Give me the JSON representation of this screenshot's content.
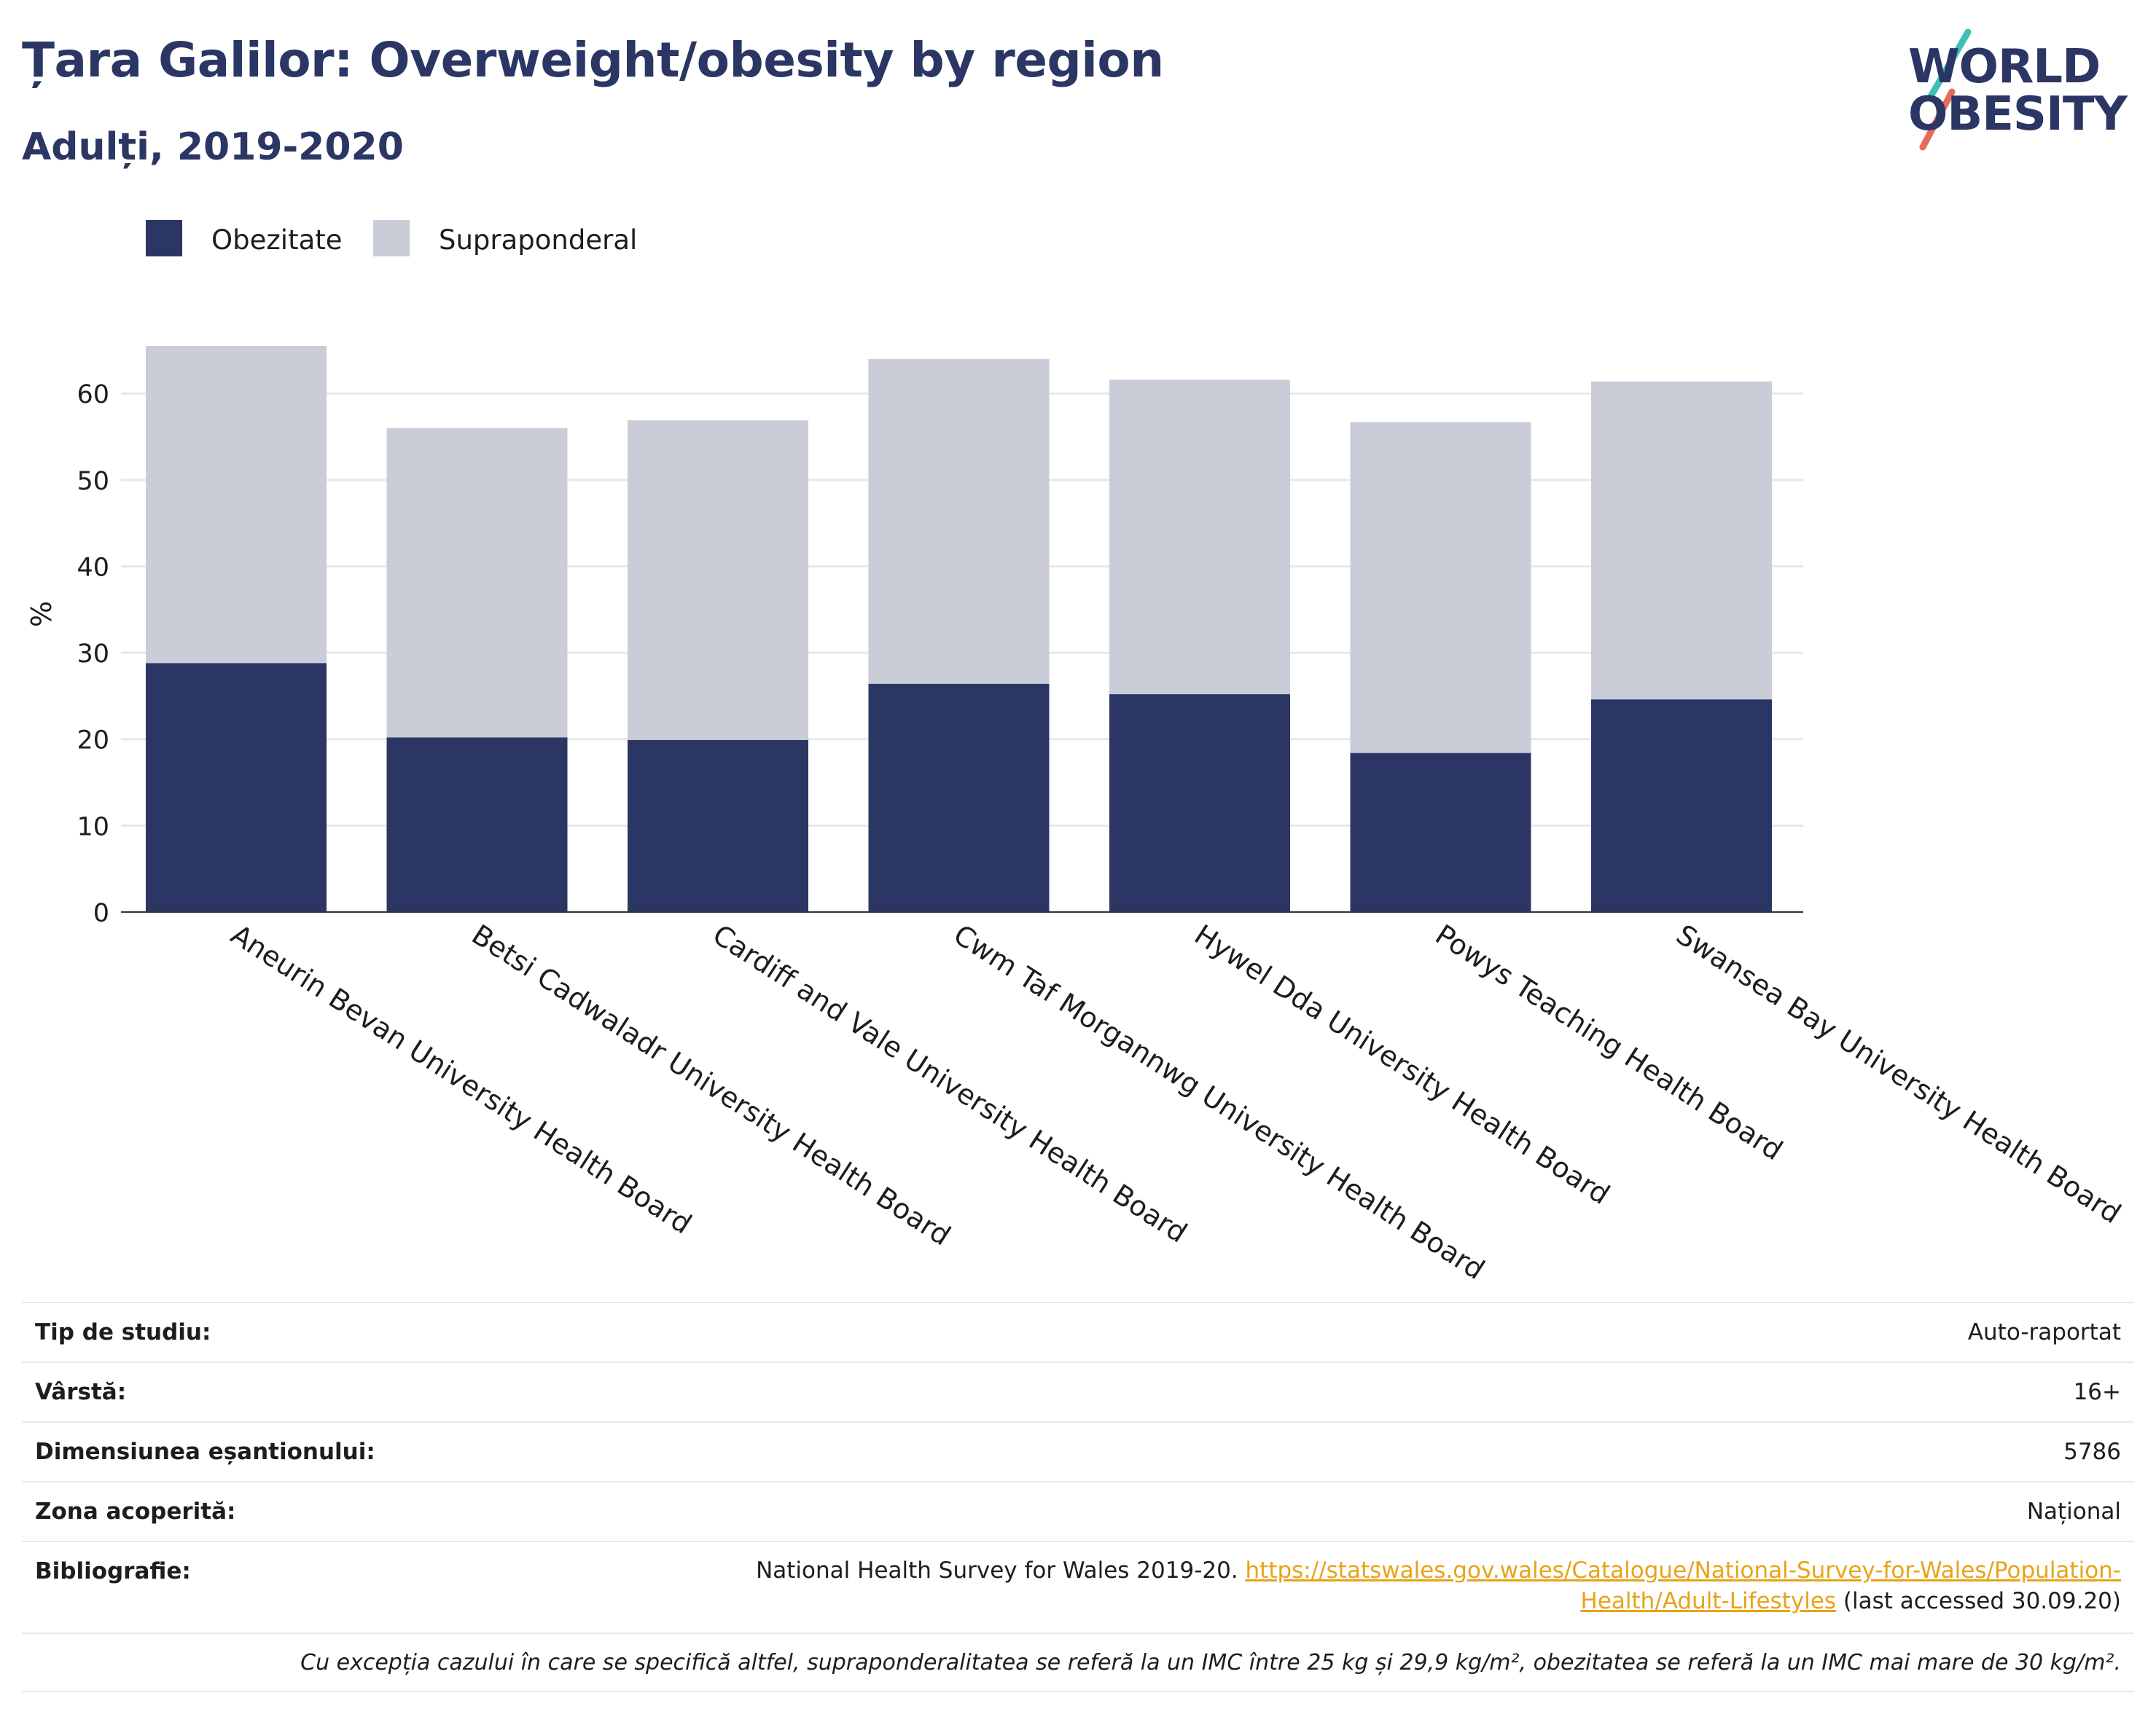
{
  "header": {
    "title": "Țara Galilor: Overweight/obesity by region",
    "subtitle": "Adulți, 2019-2020"
  },
  "logo": {
    "line1": "WORLD",
    "line2": "OBESITY"
  },
  "colors": {
    "obesity": "#2b3664",
    "overweight": "#cacdd8",
    "title": "#2b3664",
    "link": "#e8a317",
    "logo_teal": "#3cbfb8",
    "logo_coral": "#e86a5c"
  },
  "legend": {
    "obesity": "Obezitate",
    "overweight": "Supraponderal"
  },
  "chart_data": {
    "type": "bar",
    "stacked": true,
    "title": "Țara Galilor: Overweight/obesity by region",
    "subtitle": "Adulți, 2019-2020",
    "ylabel": "%",
    "xlabel": "",
    "ylim": [
      0,
      65.5
    ],
    "yticks": [
      0,
      10,
      20,
      30,
      40,
      50,
      60
    ],
    "grid": true,
    "legend_position": "top-left",
    "categories": [
      "Aneurin Bevan University Health Board",
      "Betsi Cadwaladr University Health Board",
      "Cardiff and Vale University Health Board",
      "Cwm Taf Morgannwg University Health Board",
      "Hywel Dda University Health Board",
      "Powys Teaching Health Board",
      "Swansea Bay University Health Board"
    ],
    "series": [
      {
        "name": "Obezitate",
        "values": [
          28.8,
          20.2,
          19.9,
          26.4,
          25.2,
          18.4,
          24.6
        ]
      },
      {
        "name": "Supraponderal",
        "values": [
          36.7,
          35.8,
          37.0,
          37.6,
          36.4,
          38.3,
          36.8
        ]
      }
    ]
  },
  "info": {
    "study_type_label": "Tip de studiu:",
    "study_type_value": "Auto-raportat",
    "age_label": "Vârstă:",
    "age_value": "16+",
    "sample_label": "Dimensiunea eșantionului:",
    "sample_value": "5786",
    "coverage_label": "Zona acoperită:",
    "coverage_value": "Național",
    "bib_label": "Bibliografie:",
    "bib_text": "National Health Survey for Wales 2019-20. ",
    "bib_link_1": "https://statswales.gov.wales/Catalogue/National-Survey-for-Wales/Population-",
    "bib_link_2": "Health/Adult-Lifestyles",
    "bib_suffix": " (last accessed 30.09.20)",
    "note": "Cu excepția cazului în care se specifică altfel, supraponderalitatea se referă la un IMC între 25 kg și 29,9 kg/m², obezitatea se referă la un IMC mai mare de 30 kg/m²."
  }
}
